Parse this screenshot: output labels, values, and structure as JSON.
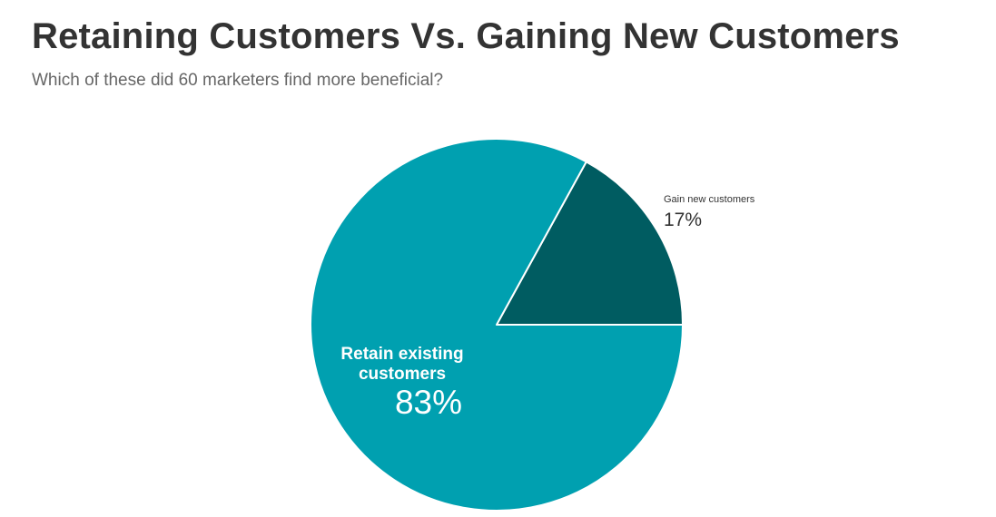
{
  "chart_data": {
    "type": "pie",
    "title": "Retaining Customers Vs. Gaining New Customers",
    "subtitle": "Which of these did 60 marketers find more beneficial?",
    "slices": [
      {
        "label_lines": [
          "Gain new customers"
        ],
        "value": 17,
        "value_label": "17%",
        "color": "#005c61",
        "label_position": "outside"
      },
      {
        "label_lines": [
          "Retain existing",
          "customers"
        ],
        "value": 83,
        "value_label": "83%",
        "color": "#00a0b0",
        "label_position": "inside"
      }
    ],
    "legend": "none",
    "slice_border_color": "#ffffff"
  }
}
